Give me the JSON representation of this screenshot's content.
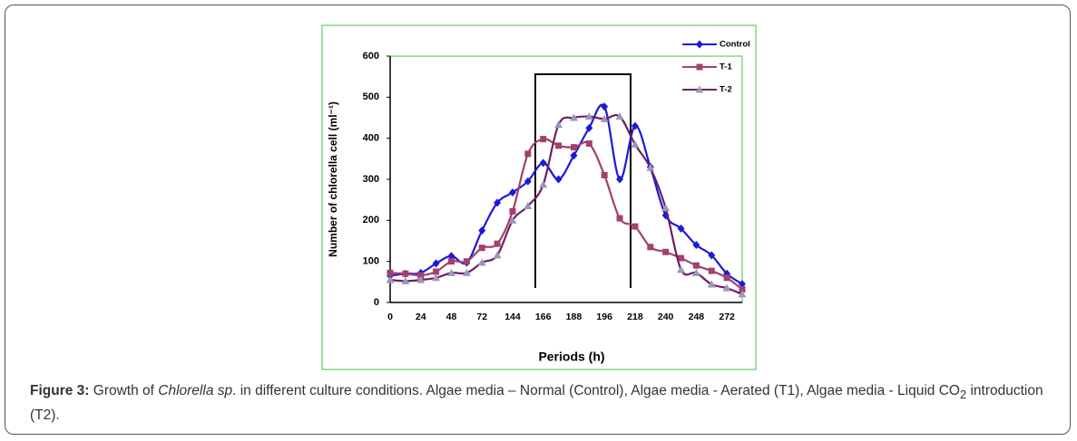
{
  "chart_data": {
    "type": "line",
    "y_label": "Number of chlorella cell (ml⁻¹)",
    "x_label": "Periods (h)",
    "categories": [
      "0",
      null,
      "24",
      null,
      "48",
      null,
      "72",
      null,
      "144",
      null,
      "166",
      null,
      "188",
      null,
      "196",
      null,
      "218",
      null,
      "240",
      null,
      "248",
      null,
      "272",
      null
    ],
    "series": [
      {
        "name": "Control",
        "color": "#1a1ad8",
        "marker": "diamond",
        "values": [
          65,
          70,
          72,
          95,
          113,
          97,
          175,
          243,
          268,
          295,
          340,
          300,
          358,
          425,
          477,
          300,
          430,
          330,
          212,
          180,
          140,
          115,
          70,
          45
        ]
      },
      {
        "name": "T-1",
        "color": "#a3406c",
        "marker": "square",
        "values": [
          72,
          70,
          66,
          75,
          100,
          100,
          133,
          143,
          222,
          362,
          398,
          382,
          378,
          387,
          310,
          205,
          185,
          135,
          123,
          108,
          90,
          77,
          60,
          32
        ]
      },
      {
        "name": "T-2",
        "color": "#6e1f62",
        "marker_color": "#9b97ba",
        "marker": "triangle",
        "values": [
          55,
          52,
          55,
          60,
          72,
          72,
          97,
          115,
          200,
          235,
          287,
          433,
          450,
          453,
          447,
          453,
          385,
          328,
          230,
          80,
          72,
          44,
          35,
          20
        ]
      }
    ],
    "ylim": [
      0,
      600
    ],
    "yticks": [
      0,
      100,
      200,
      300,
      400,
      500,
      600
    ],
    "grid": false
  },
  "caption": {
    "label": "Figure 3:",
    "parts": [
      " Growth of ",
      "Chlorella sp",
      ". in different culture conditions. Algae media – Normal (Control), Algae media - Aerated (T1), Algae media - Liquid CO",
      "2",
      " introduction (T2)."
    ]
  }
}
